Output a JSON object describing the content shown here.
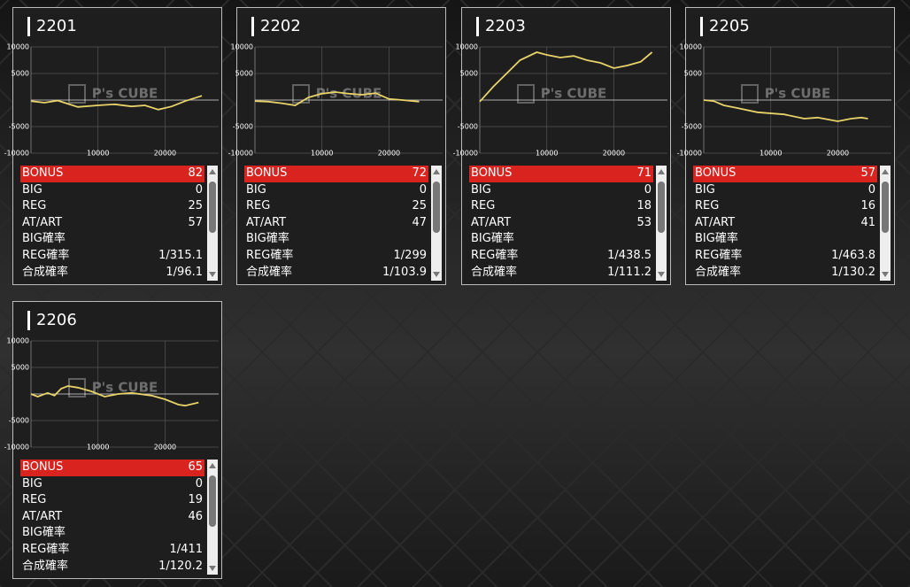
{
  "cards": [
    {
      "title": "2201",
      "chart": {
        "type": "line",
        "color": "#e8d36a",
        "xlim": [
          0,
          28000
        ],
        "ylim": [
          -10000,
          10000
        ],
        "xticks": [
          10000,
          20000
        ],
        "yticks": [
          -10000,
          -5000,
          5000,
          10000
        ],
        "watermark": "P's CUBE",
        "x": [
          0,
          2000,
          4000,
          7000,
          10000,
          12500,
          15000,
          17000,
          19000,
          21000,
          23000,
          25500
        ],
        "values": [
          -200,
          -500,
          -100,
          -1300,
          -1000,
          -800,
          -1200,
          -1000,
          -1800,
          -1200,
          -200,
          800
        ]
      },
      "stats": [
        {
          "label": "BONUS",
          "value": 82
        },
        {
          "label": "BIG",
          "value": 0
        },
        {
          "label": "REG",
          "value": 25
        },
        {
          "label": "AT/ART",
          "value": 57
        },
        {
          "label": "BIG確率"
        },
        {
          "label": "REG確率",
          "value": "1/315.1"
        },
        {
          "label": "合成確率",
          "value": "1/96.1"
        }
      ]
    },
    {
      "title": "2202",
      "chart": {
        "type": "line",
        "color": "#e8d36a",
        "xlim": [
          0,
          28000
        ],
        "ylim": [
          -10000,
          10000
        ],
        "xticks": [
          10000,
          20000
        ],
        "yticks": [
          -10000,
          -5000,
          5000,
          10000
        ],
        "watermark": "P's CUBE",
        "x": [
          0,
          2000,
          4000,
          6000,
          8000,
          10000,
          12000,
          14000,
          16000,
          18000,
          20000,
          22000,
          24500
        ],
        "values": [
          -200,
          -300,
          -600,
          -1000,
          500,
          1200,
          1500,
          1200,
          1000,
          1300,
          200,
          0,
          -300
        ]
      },
      "stats": [
        {
          "label": "BONUS",
          "value": 72
        },
        {
          "label": "BIG",
          "value": 0
        },
        {
          "label": "REG",
          "value": 25
        },
        {
          "label": "AT/ART",
          "value": 47
        },
        {
          "label": "BIG確率"
        },
        {
          "label": "REG確率",
          "value": "1/299"
        },
        {
          "label": "合成確率",
          "value": "1/103.9"
        }
      ]
    },
    {
      "title": "2203",
      "chart": {
        "type": "line",
        "color": "#e8d36a",
        "xlim": [
          0,
          28000
        ],
        "ylim": [
          -10000,
          10000
        ],
        "xticks": [
          10000,
          20000
        ],
        "yticks": [
          -10000,
          -5000,
          5000,
          10000
        ],
        "watermark": "P's CUBE",
        "x": [
          0,
          2000,
          4000,
          6000,
          8500,
          10000,
          12000,
          14000,
          16000,
          18000,
          20000,
          22000,
          24000,
          25700
        ],
        "values": [
          -300,
          2500,
          5000,
          7500,
          9000,
          8500,
          8000,
          8300,
          7500,
          7000,
          6000,
          6500,
          7200,
          9000
        ]
      },
      "stats": [
        {
          "label": "BONUS",
          "value": 71
        },
        {
          "label": "BIG",
          "value": 0
        },
        {
          "label": "REG",
          "value": 18
        },
        {
          "label": "AT/ART",
          "value": 53
        },
        {
          "label": "BIG確率"
        },
        {
          "label": "REG確率",
          "value": "1/438.5"
        },
        {
          "label": "合成確率",
          "value": "1/111.2"
        }
      ]
    },
    {
      "title": "2205",
      "chart": {
        "type": "line",
        "color": "#e8d36a",
        "xlim": [
          0,
          28000
        ],
        "ylim": [
          -10000,
          10000
        ],
        "xticks": [
          10000,
          20000
        ],
        "yticks": [
          -10000,
          -5000,
          5000,
          10000
        ],
        "watermark": "P's CUBE",
        "x": [
          0,
          1500,
          3000,
          5000,
          8000,
          12000,
          15000,
          17000,
          20000,
          22000,
          23500,
          24500
        ],
        "values": [
          0,
          -200,
          -1000,
          -1500,
          -2300,
          -2700,
          -3500,
          -3300,
          -4000,
          -3500,
          -3300,
          -3500
        ]
      },
      "stats": [
        {
          "label": "BONUS",
          "value": 57
        },
        {
          "label": "BIG",
          "value": 0
        },
        {
          "label": "REG",
          "value": 16
        },
        {
          "label": "AT/ART",
          "value": 41
        },
        {
          "label": "BIG確率"
        },
        {
          "label": "REG確率",
          "value": "1/463.8"
        },
        {
          "label": "合成確率",
          "value": "1/130.2"
        }
      ]
    },
    {
      "title": "2206",
      "chart": {
        "type": "line",
        "color": "#e8d36a",
        "xlim": [
          0,
          28000
        ],
        "ylim": [
          -10000,
          10000
        ],
        "xticks": [
          10000,
          20000
        ],
        "yticks": [
          -10000,
          -5000,
          5000,
          10000
        ],
        "watermark": "P's CUBE",
        "x": [
          0,
          1000,
          2500,
          3500,
          4500,
          5500,
          7000,
          9000,
          11000,
          13000,
          15000,
          18000,
          20000,
          22000,
          23000,
          25000
        ],
        "values": [
          0,
          -500,
          200,
          -300,
          1000,
          1500,
          1200,
          500,
          -500,
          0,
          200,
          -300,
          -1000,
          -2000,
          -2200,
          -1600
        ]
      },
      "stats": [
        {
          "label": "BONUS",
          "value": 65
        },
        {
          "label": "BIG",
          "value": 0
        },
        {
          "label": "REG",
          "value": 19
        },
        {
          "label": "AT/ART",
          "value": 46
        },
        {
          "label": "BIG確率"
        },
        {
          "label": "REG確率",
          "value": "1/411"
        },
        {
          "label": "合成確率",
          "value": "1/120.2"
        }
      ]
    }
  ]
}
